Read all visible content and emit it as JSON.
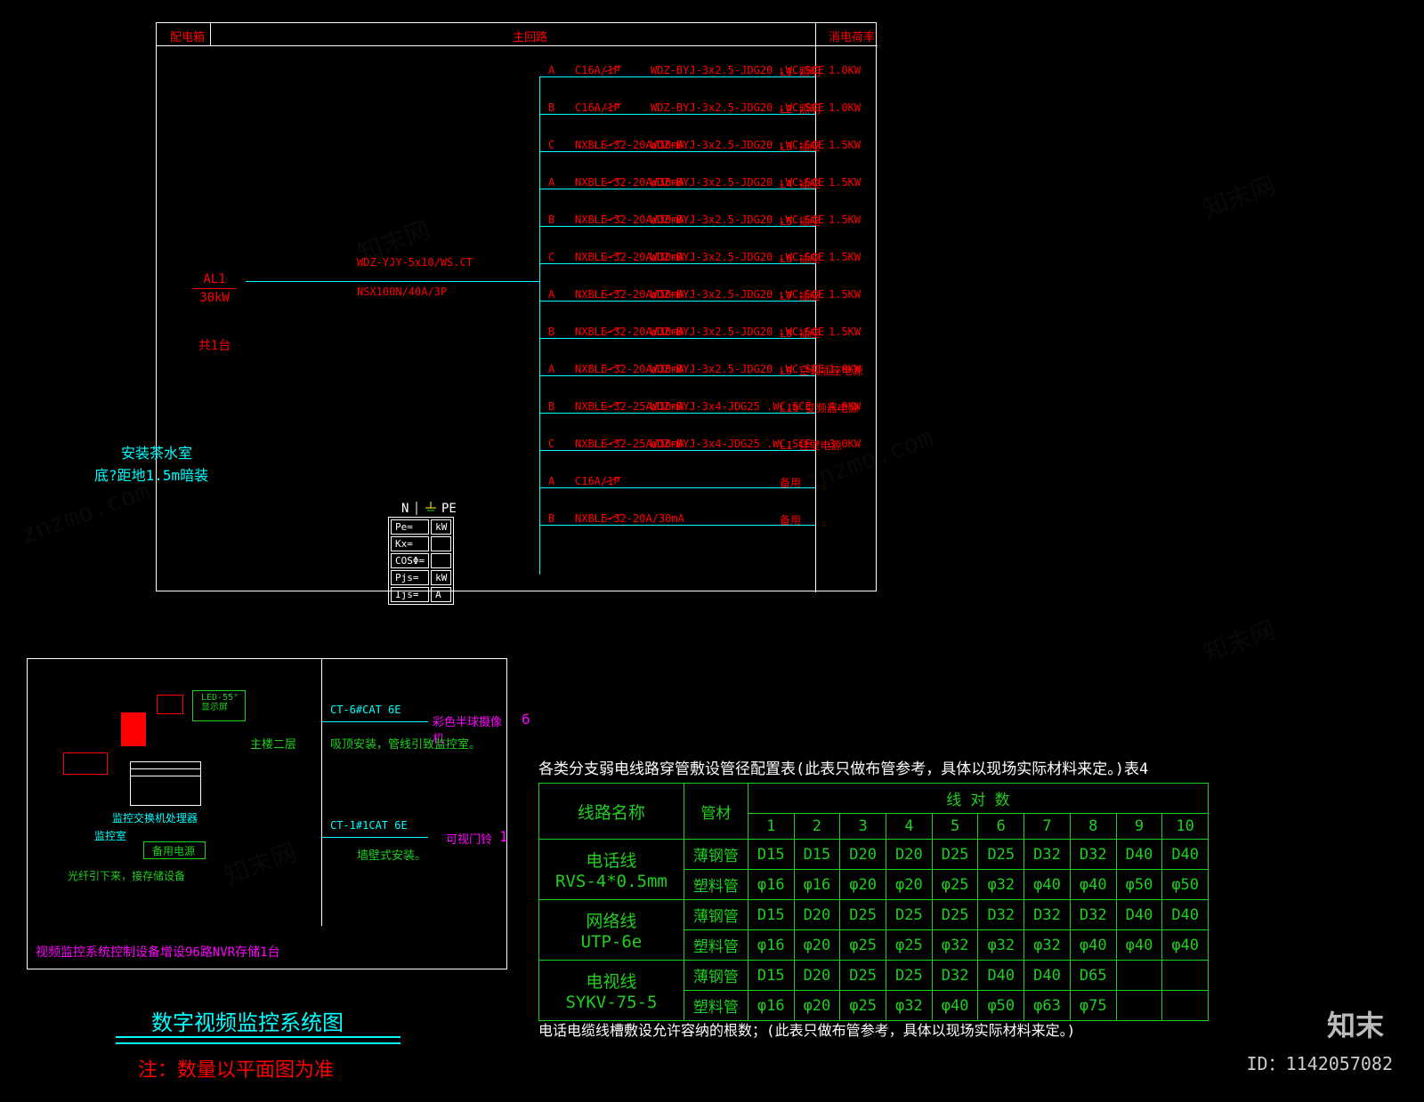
{
  "watermarks": [
    "znzmo.com",
    "知末网",
    "知末"
  ],
  "upper": {
    "hdr_left": "配电箱",
    "hdr_mid": "主回路",
    "hdr_right": "消电荷率",
    "al_name": "AL1",
    "al_power": "30kW",
    "al_qty": "共1台",
    "feed_cable": "WDZ-YJY-5x10/WS.CT",
    "main_breaker": "NSX100N/40A/3P",
    "install_loc": "安装茶水室",
    "install_note": "底?距地1.5m暗装",
    "npe_n": "N",
    "npe_pe": "PE",
    "stbl": [
      [
        "Pe=",
        "kW"
      ],
      [
        "Kx=",
        ""
      ],
      [
        "COSΦ=",
        ""
      ],
      [
        "Pjs=",
        "kW"
      ],
      [
        "Ijs=",
        "A"
      ]
    ],
    "circuits": [
      {
        "ph": "A",
        "brk": "C16A/1P",
        "cable": "WDZ-BYJ-3x2.5-JDG20 .WC,SCE",
        "lbl": "L1 照明",
        "pw": "1.0KW"
      },
      {
        "ph": "B",
        "brk": "C16A/1P",
        "cable": "WDZ-BYJ-3x2.5-JDG20 .WC,SCE",
        "lbl": "L2 照明",
        "pw": "1.0KW"
      },
      {
        "ph": "C",
        "brk": "NXBLE-32-20A/30mA",
        "cable": "WDZ-BYJ-3x2.5-JDG20 .WC,SCE",
        "lbl": "L3 插座",
        "pw": "1.5KW"
      },
      {
        "ph": "A",
        "brk": "NXBLE-32-20A/30mA",
        "cable": "WDZ-BYJ-3x2.5-JDG20 .WC,SCE",
        "lbl": "L4 插座",
        "pw": "1.5KW"
      },
      {
        "ph": "B",
        "brk": "NXBLE-32-20A/30mA",
        "cable": "WDZ-BYJ-3x2.5-JDG20 .WC,SCE",
        "lbl": "L5 插座",
        "pw": "1.5KW"
      },
      {
        "ph": "C",
        "brk": "NXBLE-32-20A/30mA",
        "cable": "WDZ-BYJ-3x2.5-JDG20 .WC,SCE",
        "lbl": "L6 插座",
        "pw": "1.5KW"
      },
      {
        "ph": "A",
        "brk": "NXBLE-32-20A/30mA",
        "cable": "WDZ-BYJ-3x2.5-JDG20 .WC,SCE",
        "lbl": "L7 插座",
        "pw": "1.5KW"
      },
      {
        "ph": "B",
        "brk": "NXBLE-32-20A/30mA",
        "cable": "WDZ-BYJ-3x2.5-JDG20 .WC,SCE",
        "lbl": "L8 插座",
        "pw": "1.5KW"
      },
      {
        "ph": "A",
        "brk": "NXBLE-32-20A/30mA",
        "cable": "WDZ-BYJ-3x2.5-JDG20 .WC,SCE",
        "lbl": "L9 空调插座电源",
        "pw": "1.0KW"
      },
      {
        "ph": "B",
        "brk": "NXBLE-32-25A/30mA",
        "cable": "WDZ-BYJ-3x4-JDG25 .WC,SCE",
        "lbl": "L10 变频器电源",
        "pw": "4.0KW"
      },
      {
        "ph": "C",
        "brk": "NXBLE-32-25A/30mA",
        "cable": "WDZ-BYJ-3x4-JDG25 .WC,SCE",
        "lbl": "L1 挂壁电源",
        "pw": "3.0KW"
      },
      {
        "ph": "A",
        "brk": "C16A/1P",
        "cable": "",
        "lbl": "备用",
        "pw": ""
      },
      {
        "ph": "B",
        "brk": "NXBLE-32-20A/30mA",
        "cable": "",
        "lbl": "备用",
        "pw": ""
      }
    ]
  },
  "lower_left": {
    "cam_label1": "CT-6#CAT 6E",
    "cam_type1": "彩色半球摄像机",
    "cam_count1": "6",
    "cam_inst1": "吸顶安装，管线引致监控室。",
    "cam_row": "主楼二层",
    "cam_label2": "CT-1#1CAT 6E",
    "cam_type2": "可视门铃",
    "cam_count2": "1",
    "cam_inst2": "墙壁式安装。",
    "mon_room": "监控室",
    "switch": "监控交换机处理器",
    "ups": "备用电源",
    "fiber": "光纤引下来，接存储设备",
    "display": "LED-55\"\\n显示屏",
    "nvr_note": "视频监控系统控制设备增设96路NVR存储1台",
    "title": "数字视频监控系统图",
    "note": "注：数量以平面图为准"
  },
  "lower_right": {
    "title": "各类分支弱电线路穿管敷设管径配置表(此表只做布管参考，具体以现场实际材料来定。)表4",
    "col_name": "线路名称",
    "col_pipe": "管材",
    "col_pair": "线 对 数",
    "pair_nums": [
      "1",
      "2",
      "3",
      "4",
      "5",
      "6",
      "7",
      "8",
      "9",
      "10"
    ],
    "rows": [
      {
        "name": "电话线",
        "sub": "RVS-4*0.5mm",
        "r1": [
          "薄钢管",
          "D15",
          "D15",
          "D20",
          "D20",
          "D25",
          "D25",
          "D32",
          "D32",
          "D40",
          "D40"
        ],
        "r2": [
          "塑料管",
          "φ16",
          "φ16",
          "φ20",
          "φ20",
          "φ25",
          "φ32",
          "φ40",
          "φ40",
          "φ50",
          "φ50"
        ]
      },
      {
        "name": "网络线",
        "sub": "UTP-6e",
        "r1": [
          "薄钢管",
          "D15",
          "D20",
          "D25",
          "D25",
          "D25",
          "D32",
          "D32",
          "D32",
          "D40",
          "D40"
        ],
        "r2": [
          "塑料管",
          "φ16",
          "φ20",
          "φ25",
          "φ25",
          "φ32",
          "φ32",
          "φ32",
          "φ40",
          "φ40",
          "φ40"
        ]
      },
      {
        "name": "电视线",
        "sub": "SYKV-75-5",
        "r1": [
          "薄钢管",
          "D15",
          "D20",
          "D25",
          "D25",
          "D32",
          "D40",
          "D40",
          "D65",
          "",
          ""
        ],
        "r2": [
          "塑料管",
          "φ16",
          "φ20",
          "φ25",
          "φ32",
          "φ40",
          "φ50",
          "φ63",
          "φ75",
          "",
          ""
        ]
      }
    ],
    "footnote": "电话电缆线槽敷设允许容纳的根数；(此表只做布管参考，具体以现场实际材料来定。)"
  },
  "footer_logo": "知末",
  "footer_id": "ID：1142057082"
}
